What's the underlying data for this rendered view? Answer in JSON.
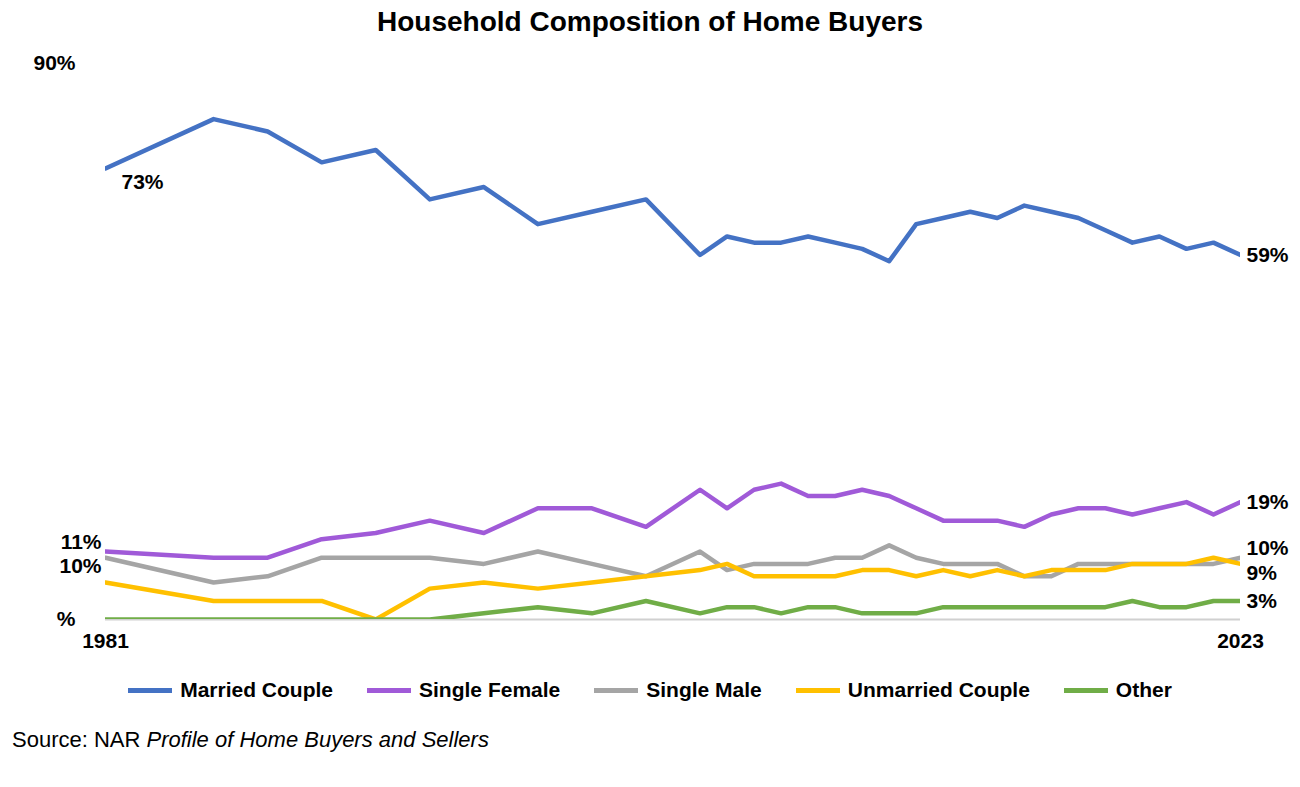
{
  "chart_data": {
    "type": "line",
    "title": "Household Composition of Home Buyers",
    "source": [
      "Source: NAR",
      "Profile of Home Buyers and Sellers"
    ],
    "x": [
      1981,
      1985,
      1987,
      1989,
      1991,
      1993,
      1995,
      1997,
      1999,
      2001,
      2003,
      2004,
      2005,
      2006,
      2007,
      2008,
      2009,
      2010,
      2011,
      2012,
      2013,
      2014,
      2015,
      2016,
      2017,
      2018,
      2019,
      2020,
      2021,
      2022,
      2023
    ],
    "xlim": [
      1981,
      2023
    ],
    "xticks": [
      1981,
      2023
    ],
    "ylim": [
      0,
      90
    ],
    "yticks": [
      {
        "value": 0,
        "label": "%"
      },
      {
        "value": 90,
        "label": "90%"
      }
    ],
    "grid": false,
    "legend": "bottom",
    "series": [
      {
        "name": "Married Couple",
        "color": "#4472c4",
        "values": [
          73,
          81,
          79,
          74,
          76,
          68,
          70,
          64,
          66,
          68,
          59,
          62,
          61,
          61,
          62,
          61,
          60,
          58,
          64,
          65,
          66,
          65,
          67,
          66,
          65,
          63,
          61,
          62,
          60,
          61,
          59
        ]
      },
      {
        "name": "Single Female",
        "color": "#a05ad8",
        "values": [
          11,
          10,
          10,
          13,
          14,
          16,
          14,
          18,
          18,
          15,
          21,
          18,
          21,
          22,
          20,
          20,
          21,
          20,
          18,
          16,
          16,
          16,
          15,
          17,
          18,
          18,
          17,
          18,
          19,
          17,
          19
        ]
      },
      {
        "name": "Single Male",
        "color": "#a5a5a5",
        "values": [
          10,
          6,
          7,
          10,
          10,
          10,
          9,
          11,
          9,
          7,
          11,
          8,
          9,
          9,
          9,
          10,
          10,
          12,
          10,
          9,
          9,
          9,
          7,
          7,
          9,
          9,
          9,
          9,
          9,
          9,
          10
        ]
      },
      {
        "name": "Unmarried Couple",
        "color": "#ffc000",
        "values": [
          6,
          3,
          3,
          3,
          0,
          5,
          6,
          5,
          6,
          7,
          8,
          9,
          7,
          7,
          7,
          7,
          8,
          8,
          7,
          8,
          7,
          8,
          7,
          8,
          8,
          8,
          9,
          9,
          9,
          10,
          9
        ]
      },
      {
        "name": "Other",
        "color": "#70ad47",
        "values": [
          0,
          0,
          0,
          0,
          0,
          0,
          1,
          2,
          1,
          3,
          1,
          2,
          2,
          1,
          2,
          2,
          1,
          1,
          1,
          2,
          2,
          2,
          2,
          2,
          2,
          2,
          3,
          2,
          2,
          3,
          3
        ]
      }
    ],
    "annotations": [
      {
        "text": "73%",
        "x": 1981,
        "y": 73
      },
      {
        "text": "11%",
        "x": 1981,
        "y": 11
      },
      {
        "text": "10%",
        "x": 1981,
        "y": 10
      },
      {
        "text": "59%",
        "x": 2023,
        "y": 59
      },
      {
        "text": "19%",
        "x": 2023,
        "y": 19
      },
      {
        "text": "10%",
        "x": 2023,
        "y": 10
      },
      {
        "text": "9%",
        "x": 2023,
        "y": 9
      },
      {
        "text": "3%",
        "x": 2023,
        "y": 3
      }
    ]
  }
}
